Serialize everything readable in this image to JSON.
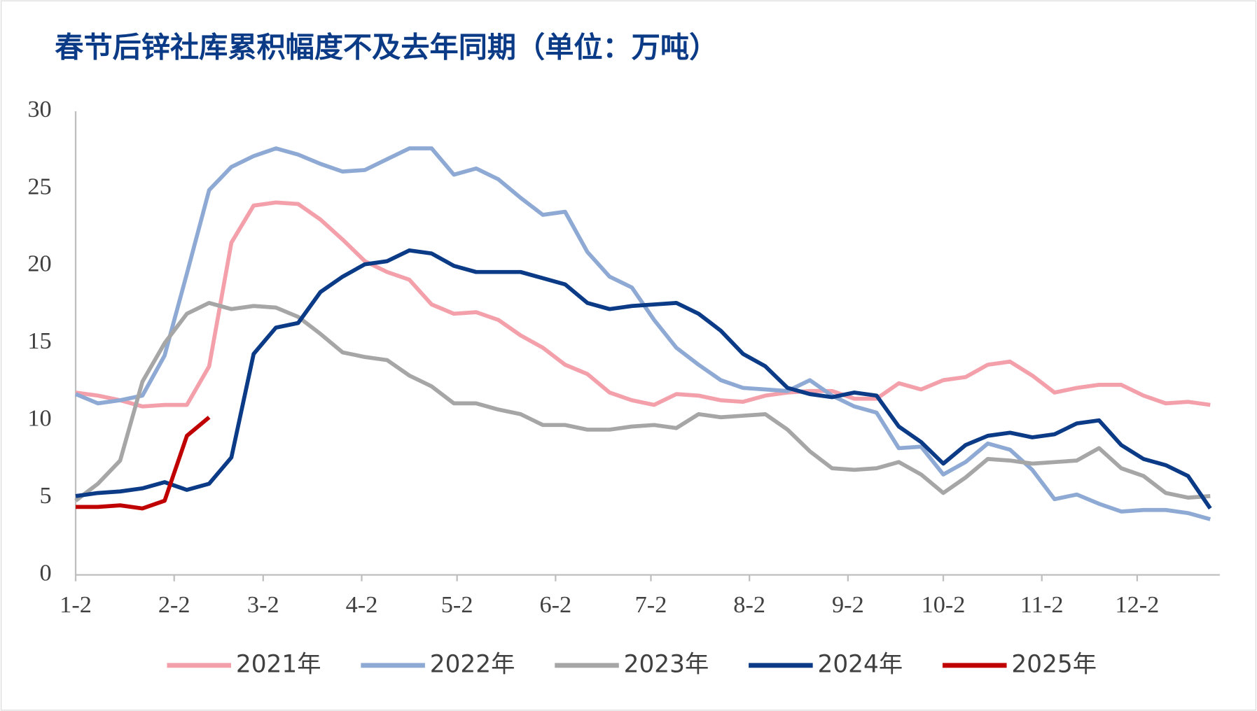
{
  "chart_data": {
    "type": "line",
    "title": "春节后锌社库累积幅度不及去年同期（单位：万吨）",
    "x": [
      0,
      7,
      14,
      21,
      28,
      35,
      42,
      49,
      56,
      63,
      70,
      77,
      84,
      91,
      98,
      105,
      112,
      119,
      126,
      133,
      140,
      147,
      154,
      161,
      168,
      175,
      182,
      189,
      196,
      203,
      210,
      217,
      224,
      231,
      238,
      245,
      252,
      259,
      266,
      273,
      280,
      287,
      294,
      301,
      308,
      315,
      322,
      329,
      336,
      343,
      350,
      357
    ],
    "xlim": [
      0,
      360
    ],
    "xticks": [
      {
        "value": 0,
        "label": "1-2"
      },
      {
        "value": 31,
        "label": "2-2"
      },
      {
        "value": 59,
        "label": "3-2"
      },
      {
        "value": 90,
        "label": "4-2"
      },
      {
        "value": 120,
        "label": "5-2"
      },
      {
        "value": 151,
        "label": "6-2"
      },
      {
        "value": 181,
        "label": "7-2"
      },
      {
        "value": 212,
        "label": "8-2"
      },
      {
        "value": 243,
        "label": "9-2"
      },
      {
        "value": 273,
        "label": "10-2"
      },
      {
        "value": 304,
        "label": "11-2"
      },
      {
        "value": 334,
        "label": "12-2"
      }
    ],
    "ylim": [
      0,
      30
    ],
    "yticks": [
      0,
      5,
      10,
      15,
      20,
      25,
      30
    ],
    "grid": false,
    "legend": "bottom",
    "series": [
      {
        "name": "2021年",
        "color": "#f4a0ab",
        "values": [
          11.8,
          11.6,
          11.3,
          10.9,
          11.0,
          11.0,
          13.5,
          21.5,
          23.9,
          24.1,
          24.0,
          23.0,
          21.7,
          20.3,
          19.6,
          19.1,
          17.5,
          16.9,
          17.0,
          16.5,
          15.5,
          14.7,
          13.6,
          13.0,
          11.8,
          11.3,
          11.0,
          11.7,
          11.6,
          11.3,
          11.2,
          11.6,
          11.8,
          11.9,
          11.9,
          11.4,
          11.4,
          12.4,
          12.0,
          12.6,
          12.8,
          13.6,
          13.8,
          12.9,
          11.8,
          12.1,
          12.3,
          12.3,
          11.6,
          11.1,
          11.2,
          11.0
        ]
      },
      {
        "name": "2022年",
        "color": "#8eaad4",
        "values": [
          11.7,
          11.1,
          11.3,
          11.6,
          14.2,
          19.5,
          24.9,
          26.4,
          27.1,
          27.6,
          27.2,
          26.6,
          26.1,
          26.2,
          26.9,
          27.6,
          27.6,
          25.9,
          26.3,
          25.6,
          24.4,
          23.3,
          23.5,
          20.9,
          19.3,
          18.6,
          16.5,
          14.7,
          13.6,
          12.6,
          12.1,
          12.0,
          11.9,
          12.6,
          11.6,
          10.9,
          10.5,
          8.2,
          8.3,
          6.5,
          7.3,
          8.5,
          8.1,
          6.8,
          4.9,
          5.2,
          4.6,
          4.1,
          4.2,
          4.2,
          4.0,
          3.6
        ]
      },
      {
        "name": "2023年",
        "color": "#a6a6a6",
        "values": [
          4.8,
          5.9,
          7.4,
          12.5,
          15.0,
          16.9,
          17.6,
          17.2,
          17.4,
          17.3,
          16.7,
          15.6,
          14.4,
          14.1,
          13.9,
          12.9,
          12.2,
          11.1,
          11.1,
          10.7,
          10.4,
          9.7,
          9.7,
          9.4,
          9.4,
          9.6,
          9.7,
          9.5,
          10.4,
          10.2,
          10.3,
          10.4,
          9.4,
          8.0,
          6.9,
          6.8,
          6.9,
          7.3,
          6.5,
          5.3,
          6.3,
          7.5,
          7.4,
          7.2,
          7.3,
          7.4,
          8.2,
          6.9,
          6.4,
          5.3,
          5.0,
          5.1
        ]
      },
      {
        "name": "2024年",
        "color": "#0b3b86",
        "values": [
          5.1,
          5.3,
          5.4,
          5.6,
          6.0,
          5.5,
          5.9,
          7.6,
          14.3,
          16.0,
          16.3,
          18.3,
          19.3,
          20.1,
          20.3,
          21.0,
          20.8,
          20.0,
          19.6,
          19.6,
          19.6,
          19.2,
          18.8,
          17.6,
          17.2,
          17.4,
          17.5,
          17.6,
          16.9,
          15.8,
          14.3,
          13.5,
          12.1,
          11.7,
          11.5,
          11.8,
          11.6,
          9.6,
          8.6,
          7.2,
          8.4,
          9.0,
          9.2,
          8.9,
          9.1,
          9.8,
          10.0,
          8.4,
          7.5,
          7.1,
          6.4,
          4.3
        ]
      },
      {
        "name": "2025年",
        "color": "#c00000",
        "values": [
          4.4,
          4.4,
          4.5,
          4.3,
          4.8,
          9.0,
          10.2,
          null,
          null,
          null,
          null,
          null,
          null,
          null,
          null,
          null,
          null,
          null,
          null,
          null,
          null,
          null,
          null,
          null,
          null,
          null,
          null,
          null,
          null,
          null,
          null,
          null,
          null,
          null,
          null,
          null,
          null,
          null,
          null,
          null,
          null,
          null,
          null,
          null,
          null,
          null,
          null,
          null,
          null,
          null,
          null,
          null
        ]
      }
    ]
  }
}
